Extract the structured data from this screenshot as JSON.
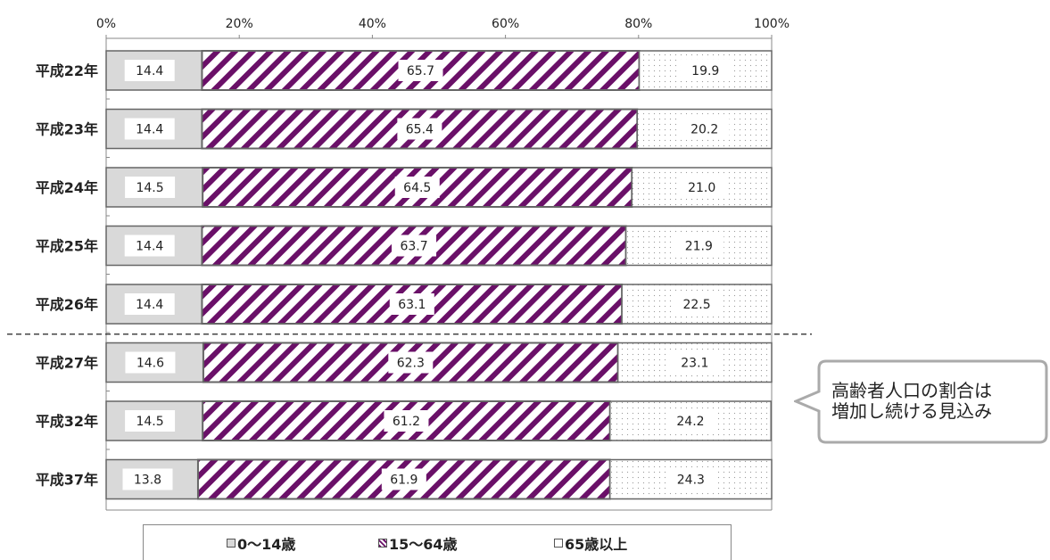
{
  "chart_data": {
    "type": "bar",
    "orientation": "horizontal",
    "stacked": "percent",
    "categories": [
      "平成22年",
      "平成23年",
      "平成24年",
      "平成25年",
      "平成26年",
      "平成27年",
      "平成32年",
      "平成37年"
    ],
    "series": [
      {
        "name": "0～14歳",
        "values": [
          14.4,
          14.4,
          14.5,
          14.4,
          14.4,
          14.6,
          14.5,
          13.8
        ],
        "color": "#d9d9d9"
      },
      {
        "name": "15～64歳",
        "values": [
          65.7,
          65.4,
          64.5,
          63.7,
          63.1,
          62.3,
          61.2,
          61.9
        ],
        "color": "#6a1068"
      },
      {
        "name": "65歳以上",
        "values": [
          19.9,
          20.2,
          21.0,
          21.9,
          22.5,
          23.1,
          24.2,
          24.3
        ],
        "color": "#ffffff"
      }
    ],
    "x_ticks": [
      "0%",
      "20%",
      "40%",
      "60%",
      "80%",
      "100%"
    ],
    "xlim": [
      0,
      100
    ],
    "legend_position": "bottom",
    "annotation": "高齢者人口の割合は\n増加し続ける見込み",
    "divider_between": [
      "平成26年",
      "平成27年"
    ]
  },
  "legend": {
    "young": "0～14歳",
    "working": "15～64歳",
    "old": "65歳以上"
  },
  "callout": {
    "line1": "高齢者人口の割合は",
    "line2": "増加し続ける見込み"
  }
}
